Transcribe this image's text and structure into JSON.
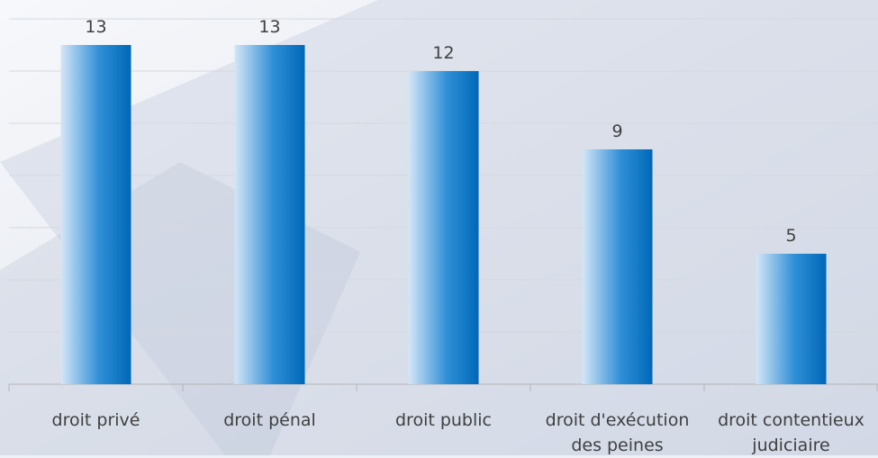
{
  "chart_data": {
    "type": "bar",
    "categories": [
      "droit privé",
      "droit pénal",
      "droit public",
      "droit d'exécution des peines",
      "droit contentieux judiciaire"
    ],
    "values": [
      13,
      13,
      12,
      9,
      5
    ],
    "color": "#0070c0",
    "ylim": [
      0,
      14
    ],
    "yticks": [
      0,
      2,
      4,
      6,
      8,
      10,
      12,
      14
    ],
    "grid": true
  }
}
